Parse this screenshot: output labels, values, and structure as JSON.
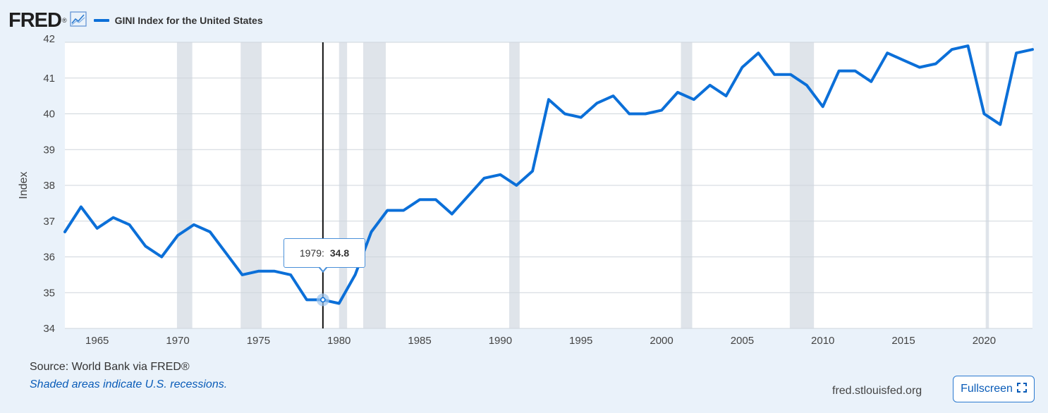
{
  "header": {
    "logo": "FRED",
    "logo_reg": "®",
    "icon": "chart-line-icon",
    "series_title": "GINI Index for the United States"
  },
  "colors": {
    "series": "#0b6fd8",
    "recession": "#dfe4ea",
    "grid": "#cfd5dc",
    "background": "#eaf2fa"
  },
  "tooltip": {
    "year": "1979:",
    "value": "34.8"
  },
  "footer": {
    "source": "Source: World Bank via FRED®",
    "note": "Shaded areas indicate U.S. recessions.",
    "url": "fred.stlouisfed.org",
    "fullscreen_label": "Fullscreen",
    "fullscreen_icon": "expand-icon"
  },
  "chart_data": {
    "type": "line",
    "title": "GINI Index for the United States",
    "xlabel": "",
    "ylabel": "Index",
    "xlim": [
      1963,
      2023
    ],
    "ylim": [
      34,
      42
    ],
    "grid": true,
    "legend": "top-left",
    "x_ticks": [
      "1965",
      "1970",
      "1975",
      "1980",
      "1985",
      "1990",
      "1995",
      "2000",
      "2005",
      "2010",
      "2015",
      "2020"
    ],
    "y_ticks": [
      "34",
      "35",
      "36",
      "37",
      "38",
      "39",
      "40",
      "41",
      "42"
    ],
    "recessions": [
      [
        1969.95,
        1970.9
      ],
      [
        1973.9,
        1975.2
      ],
      [
        1980.0,
        1980.5
      ],
      [
        1981.5,
        1982.9
      ],
      [
        1990.55,
        1991.2
      ],
      [
        2001.2,
        2001.9
      ],
      [
        2007.95,
        2009.45
      ],
      [
        2020.1,
        2020.3
      ]
    ],
    "series": [
      {
        "name": "GINI Index for the United States",
        "x": [
          1963,
          1964,
          1965,
          1966,
          1967,
          1968,
          1969,
          1970,
          1971,
          1972,
          1973,
          1974,
          1975,
          1976,
          1977,
          1978,
          1979,
          1980,
          1981,
          1982,
          1983,
          1984,
          1985,
          1986,
          1987,
          1988,
          1989,
          1990,
          1991,
          1992,
          1993,
          1994,
          1995,
          1996,
          1997,
          1998,
          1999,
          2000,
          2001,
          2002,
          2003,
          2004,
          2005,
          2006,
          2007,
          2008,
          2009,
          2010,
          2011,
          2012,
          2013,
          2014,
          2015,
          2016,
          2017,
          2018,
          2019,
          2020,
          2021,
          2022,
          2023
        ],
        "values": [
          36.7,
          37.4,
          36.8,
          37.1,
          36.9,
          36.3,
          36.0,
          36.6,
          36.9,
          36.7,
          36.1,
          35.5,
          35.6,
          35.6,
          35.5,
          34.8,
          34.8,
          34.7,
          35.5,
          36.7,
          37.3,
          37.3,
          37.6,
          37.6,
          37.2,
          37.7,
          38.2,
          38.3,
          38.0,
          38.4,
          40.4,
          40.0,
          39.9,
          40.3,
          40.5,
          40.0,
          40.0,
          40.1,
          40.6,
          40.4,
          40.8,
          40.5,
          41.3,
          41.7,
          41.1,
          41.1,
          40.8,
          40.2,
          41.2,
          41.2,
          40.9,
          41.7,
          41.5,
          41.3,
          41.4,
          41.8,
          41.9,
          40.0,
          39.7,
          41.7,
          41.8
        ]
      }
    ],
    "highlight": {
      "x": 1979,
      "y": 34.8
    }
  }
}
